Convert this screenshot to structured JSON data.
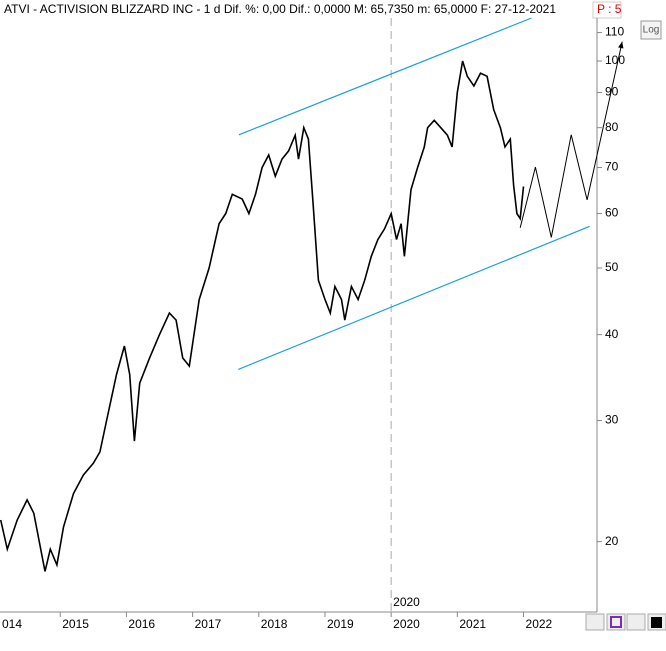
{
  "header": {
    "title": "ATVI - ACTIVISION BLIZZARD INC -  1 d Dif. %: 0,00 Dif.: 0,0000 M: 65,7350 m: 65,0000 F: 27-12-2021",
    "p_label": "P : 5",
    "log_button": "Log"
  },
  "chart_data": {
    "type": "line",
    "log_scale": true,
    "color": "#000000",
    "x": [
      2014.1,
      2014.2,
      2014.35,
      2014.5,
      2014.6,
      2014.77,
      2014.85,
      2014.95,
      2015.05,
      2015.2,
      2015.35,
      2015.5,
      2015.6,
      2015.7,
      2015.85,
      2015.97,
      2016.05,
      2016.12,
      2016.2,
      2016.35,
      2016.5,
      2016.65,
      2016.75,
      2016.85,
      2016.95,
      2017.1,
      2017.25,
      2017.4,
      2017.5,
      2017.6,
      2017.75,
      2017.85,
      2017.95,
      2018.05,
      2018.15,
      2018.25,
      2018.35,
      2018.45,
      2018.55,
      2018.6,
      2018.68,
      2018.75,
      2018.82,
      2018.9,
      2019.0,
      2019.08,
      2019.15,
      2019.25,
      2019.3,
      2019.4,
      2019.5,
      2019.6,
      2019.7,
      2019.8,
      2019.9,
      2020.0,
      2020.08,
      2020.15,
      2020.2,
      2020.3,
      2020.4,
      2020.5,
      2020.55,
      2020.65,
      2020.75,
      2020.85,
      2020.92,
      2021.0,
      2021.08,
      2021.15,
      2021.25,
      2021.35,
      2021.45,
      2021.55,
      2021.65,
      2021.72,
      2021.8,
      2021.85,
      2021.9,
      2021.95,
      2022.0
    ],
    "values": [
      21.5,
      19.5,
      21.5,
      23,
      22,
      18.1,
      19.5,
      18.5,
      21,
      23.5,
      25,
      26,
      27,
      30,
      35,
      38.5,
      35,
      28,
      34,
      37,
      40,
      43,
      42,
      37,
      36,
      45,
      50,
      58,
      60,
      64,
      63,
      60,
      64,
      70,
      73,
      68,
      72,
      74,
      78,
      72,
      80,
      77,
      62,
      48,
      45,
      43,
      47,
      45,
      42,
      47,
      45,
      48,
      52,
      55,
      57,
      60,
      55,
      58,
      52,
      65,
      70,
      75,
      80,
      82,
      80,
      78,
      75,
      90,
      100,
      95,
      92,
      96,
      95,
      85,
      80,
      75,
      77,
      66,
      60,
      59,
      65.7
    ],
    "xlim": [
      2014.09,
      2023.11
    ],
    "ylim": [
      15.8,
      115.5
    ],
    "xticks": [
      {
        "value": 2014,
        "label": "014"
      },
      2015,
      2016,
      2017,
      2018,
      2019,
      2020,
      2021,
      2022
    ],
    "yticks": [
      20,
      30,
      40,
      50,
      60,
      70,
      80,
      90,
      100,
      110
    ],
    "trendlines": [
      {
        "x": [
          2017.7,
          2022.12
        ],
        "y": [
          78.1,
          115.5
        ],
        "color": "#1aa0dc"
      },
      {
        "x": [
          2017.69,
          2023.0
        ],
        "y": [
          35.6,
          57.5
        ],
        "color": "#1aa0dc"
      }
    ],
    "projection": {
      "x": [
        2021.95,
        2022.18,
        2022.42,
        2022.72,
        2022.96,
        2023.49
      ],
      "y": [
        57.2,
        70.1,
        55.4,
        78.1,
        62.8,
        106.7
      ],
      "color": "#000000"
    },
    "marker": {
      "x": 2020,
      "label": "2020"
    }
  }
}
